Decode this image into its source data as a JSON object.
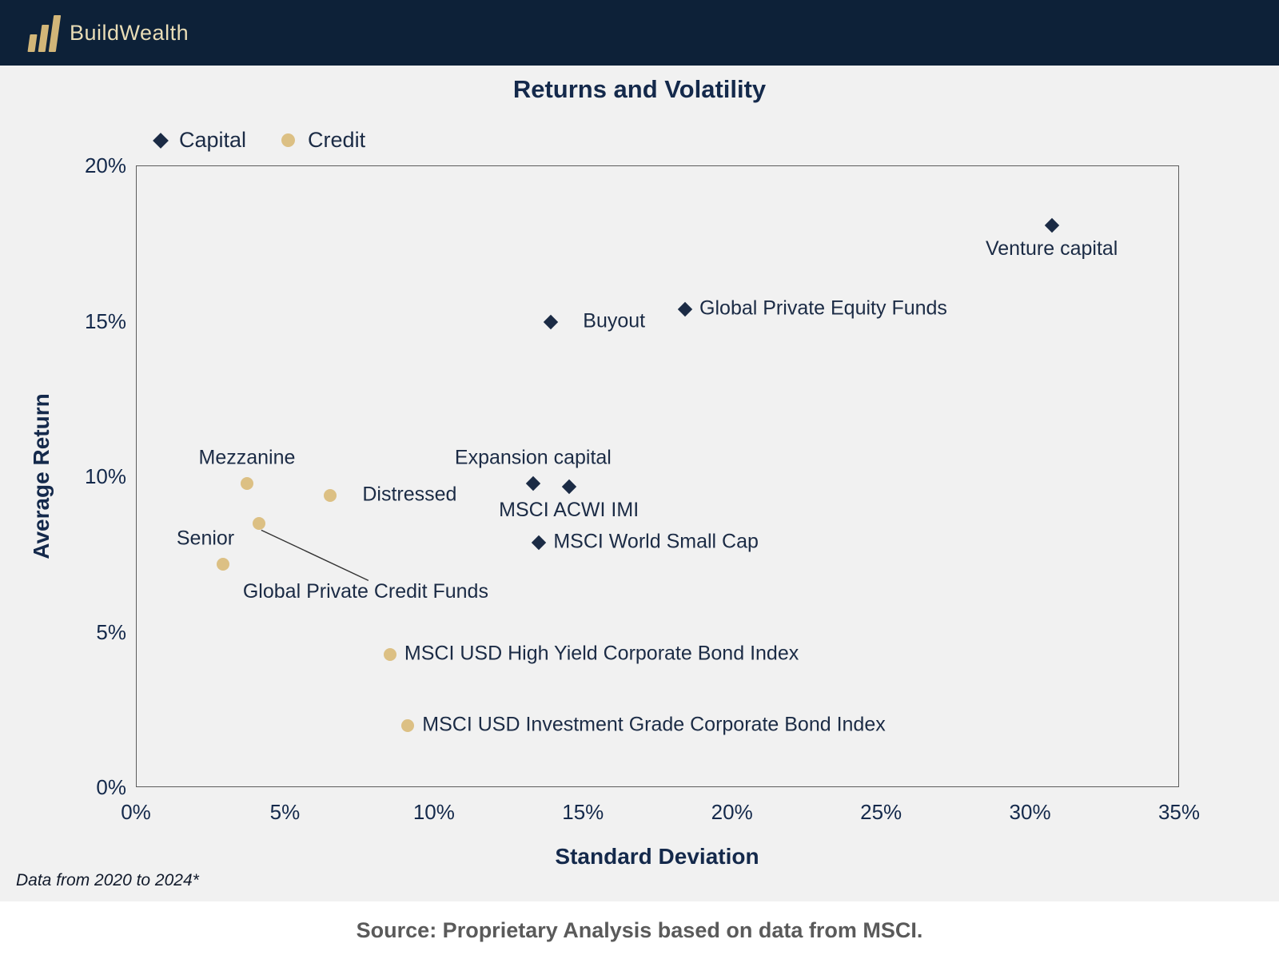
{
  "header": {
    "brand": "BuildWealth",
    "bg_color": "#0d2138",
    "logo_color": "#d2b678"
  },
  "chart_data": {
    "type": "scatter",
    "title": "Returns and Volatility",
    "xlabel": "Standard Deviation",
    "ylabel": "Average Return",
    "xlim": [
      0,
      35
    ],
    "ylim": [
      0,
      20
    ],
    "x_ticks": [
      "0%",
      "5%",
      "10%",
      "15%",
      "20%",
      "25%",
      "30%",
      "35%"
    ],
    "y_ticks": [
      "0%",
      "5%",
      "10%",
      "15%",
      "20%"
    ],
    "grid": false,
    "legend_position": "top-left",
    "series": [
      {
        "name": "Capital",
        "marker": "diamond",
        "color": "#1b2b45",
        "points": [
          {
            "label": "Venture capital",
            "x": 30.7,
            "y": 18.1,
            "label_pos": "below"
          },
          {
            "label": "Global Private Equity Funds",
            "x": 18.4,
            "y": 15.4,
            "label_pos": "right"
          },
          {
            "label": "Buyout",
            "x": 13.9,
            "y": 15.0,
            "label_pos": "right-far"
          },
          {
            "label": "Expansion capital",
            "x": 13.3,
            "y": 9.8,
            "label_pos": "above"
          },
          {
            "label": "MSCI ACWI IMI",
            "x": 14.5,
            "y": 9.7,
            "label_pos": "below"
          },
          {
            "label": "MSCI World Small Cap",
            "x": 13.5,
            "y": 7.9,
            "label_pos": "right"
          }
        ]
      },
      {
        "name": "Credit",
        "marker": "circle",
        "color": "#dcc084",
        "points": [
          {
            "label": "Mezzanine",
            "x": 3.7,
            "y": 9.8,
            "label_pos": "above"
          },
          {
            "label": "Distressed",
            "x": 6.5,
            "y": 9.4,
            "label_pos": "right-far"
          },
          {
            "label": "Global Private Credit Funds",
            "x": 4.1,
            "y": 8.5,
            "label_pos": "callout"
          },
          {
            "label": "Senior",
            "x": 2.9,
            "y": 7.2,
            "label_pos": "above-left"
          },
          {
            "label": "MSCI USD High Yield Corporate Bond Index",
            "x": 8.5,
            "y": 4.3,
            "label_pos": "right"
          },
          {
            "label": "MSCI USD Investment Grade Corporate Bond Index",
            "x": 9.1,
            "y": 2.0,
            "label_pos": "right"
          }
        ]
      }
    ]
  },
  "footer": {
    "note": "Data from 2020 to 2024*",
    "source": "Source: Proprietary Analysis based on data from  MSCI."
  }
}
